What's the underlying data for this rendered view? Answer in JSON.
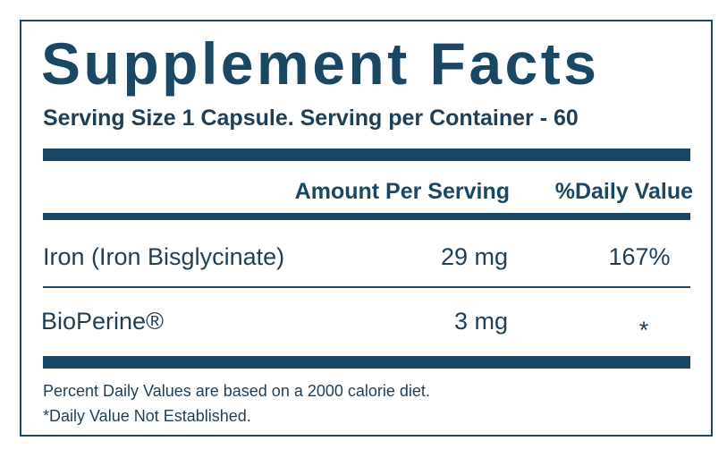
{
  "title": "Supplement Facts",
  "serving": "Serving Size 1 Capsule. Serving per Container - 60",
  "header": {
    "amount": "Amount Per Serving",
    "daily_value": "%Daily Value"
  },
  "rows": [
    [
      "Iron (Iron Bisglycinate)",
      "29 mg",
      "167%"
    ],
    [
      "BioPerine®",
      "3 mg",
      "*"
    ]
  ],
  "footnotes": [
    "Percent Daily Values are based on a 2000 calorie diet.",
    "*Daily Value Not Established."
  ]
}
